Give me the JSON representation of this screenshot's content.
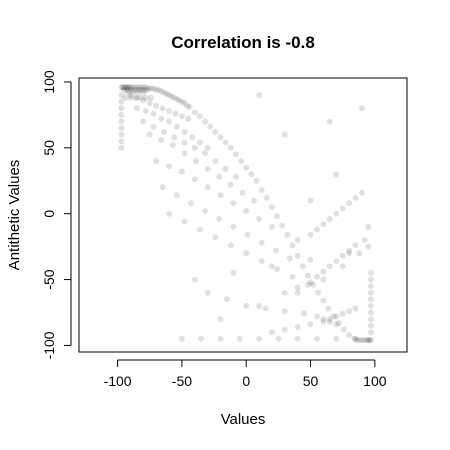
{
  "chart_data": {
    "type": "scatter",
    "title": "Correlation is -0.8",
    "xlabel": "Values",
    "ylabel": "Antithetic Values",
    "xlim": [
      -130,
      125
    ],
    "ylim": [
      -105,
      103
    ],
    "x_ticks": [
      -100,
      -50,
      0,
      50,
      100
    ],
    "x_tick_labels": [
      "-100",
      "-50",
      "0",
      "50",
      "100"
    ],
    "y_ticks": [
      -100,
      -50,
      0,
      50,
      100
    ],
    "y_tick_labels": [
      "-100",
      "-50",
      "0",
      "50",
      "100"
    ],
    "grid": false,
    "point_color": "#000000",
    "point_opacity": 0.12,
    "series": [
      {
        "values_note_x": [],
        "x": [
          -97,
          -97,
          -97,
          -97,
          -97,
          -97,
          -97,
          -97,
          -97,
          -97,
          -96,
          -95,
          -94,
          -93,
          -92,
          -91,
          -90,
          -88,
          -86,
          -84,
          -82,
          -80,
          -78,
          -76,
          -74,
          -72,
          -70,
          -68,
          -66,
          -64,
          -62,
          -60,
          -58,
          -56,
          -54,
          -52,
          -50,
          -48,
          -46,
          -44,
          -40,
          -36,
          -32,
          -28,
          -24,
          -20,
          -16,
          -12,
          -8,
          -4,
          0,
          4,
          8,
          12,
          16,
          20,
          24,
          28,
          32,
          36,
          40,
          44,
          48,
          52,
          56,
          60,
          64,
          68,
          72,
          76,
          80,
          84,
          86,
          88,
          90,
          92,
          94,
          95,
          96,
          97,
          97,
          97,
          97,
          97,
          97,
          97,
          97,
          97,
          97,
          97,
          -90,
          -85,
          -80,
          -75,
          -70,
          -65,
          -60,
          -55,
          -50,
          -45,
          -85,
          -78,
          -72,
          -66,
          -60,
          -54,
          -48,
          -42,
          -36,
          -30,
          -80,
          -72,
          -64,
          -56,
          -48,
          -40,
          -32,
          -24,
          -16,
          -8,
          -75,
          -66,
          -57,
          -48,
          -39,
          -30,
          -21,
          -12,
          -3,
          6,
          -70,
          -60,
          -50,
          -40,
          -30,
          -20,
          -10,
          0,
          10,
          20,
          -65,
          -54,
          -43,
          -32,
          -21,
          -10,
          1,
          12,
          23,
          34,
          -60,
          -48,
          -36,
          -24,
          -12,
          0,
          12,
          24,
          36,
          48,
          -30,
          -15,
          0,
          15,
          30,
          45,
          55,
          60,
          65,
          70,
          20,
          30,
          40,
          50,
          60,
          65,
          70,
          75,
          80,
          85,
          30,
          40,
          50,
          55,
          60,
          65,
          70,
          75,
          80,
          85,
          40,
          50,
          55,
          60,
          65,
          70,
          75,
          80,
          85,
          90,
          -92,
          -88,
          -84,
          -80,
          -94,
          -90,
          -86,
          -82,
          -78,
          -74,
          -95,
          -93,
          -91,
          -89,
          -87,
          -85,
          -83,
          -81,
          -79,
          -77,
          -50,
          -35,
          -20,
          -5,
          10,
          25,
          40,
          55,
          70,
          85,
          -20,
          10,
          40,
          60,
          75,
          88,
          92,
          95,
          50,
          70,
          -40,
          -10,
          20,
          50,
          80,
          95,
          30,
          65,
          90,
          10
        ],
        "y": [
          96,
          90,
          85,
          80,
          75,
          70,
          65,
          60,
          55,
          50,
          96,
          96,
          96,
          96,
          96,
          96,
          96,
          96,
          96,
          96,
          96,
          96,
          96,
          95,
          95,
          95,
          94,
          94,
          93,
          92,
          91,
          90,
          89,
          88,
          87,
          86,
          85,
          84,
          82,
          81,
          77,
          74,
          70,
          66,
          62,
          58,
          54,
          50,
          45,
          40,
          35,
          30,
          25,
          18,
          12,
          5,
          -2,
          -9,
          -16,
          -24,
          -32,
          -40,
          -47,
          -54,
          -60,
          -66,
          -72,
          -78,
          -83,
          -88,
          -92,
          -95,
          -96,
          -96,
          -96,
          -96,
          -96,
          -96,
          -96,
          -96,
          -90,
          -85,
          -80,
          -75,
          -70,
          -65,
          -60,
          -55,
          -50,
          -45,
          90,
          88,
          86,
          84,
          82,
          80,
          78,
          76,
          74,
          72,
          80,
          78,
          76,
          72,
          70,
          66,
          62,
          58,
          54,
          50,
          70,
          66,
          62,
          58,
          54,
          50,
          46,
          40,
          34,
          28,
          60,
          56,
          52,
          46,
          40,
          34,
          28,
          22,
          16,
          10,
          40,
          36,
          32,
          26,
          20,
          14,
          8,
          2,
          -4,
          -10,
          20,
          14,
          8,
          2,
          -4,
          -10,
          -16,
          -22,
          -28,
          -34,
          0,
          -6,
          -12,
          -18,
          -24,
          -30,
          -36,
          -42,
          -48,
          -54,
          -60,
          -65,
          -70,
          -72,
          -74,
          -76,
          -78,
          -80,
          -82,
          -84,
          -90,
          -88,
          -86,
          -84,
          -82,
          -80,
          -78,
          -76,
          -74,
          -72,
          -60,
          -56,
          -52,
          -48,
          -44,
          -40,
          -36,
          -32,
          -28,
          -24,
          -20,
          -16,
          -12,
          -8,
          -4,
          0,
          4,
          8,
          12,
          16,
          92,
          92,
          92,
          92,
          88,
          88,
          88,
          88,
          88,
          88,
          94,
          94,
          94,
          94,
          94,
          94,
          94,
          94,
          94,
          94,
          -95,
          -95,
          -95,
          -95,
          -95,
          -95,
          -95,
          -95,
          -95,
          -95,
          -80,
          -70,
          -60,
          -50,
          -40,
          -30,
          -20,
          -10,
          10,
          30,
          -50,
          -45,
          -40,
          -35,
          -30,
          -25,
          60,
          70,
          80,
          90
        ]
      }
    ]
  }
}
